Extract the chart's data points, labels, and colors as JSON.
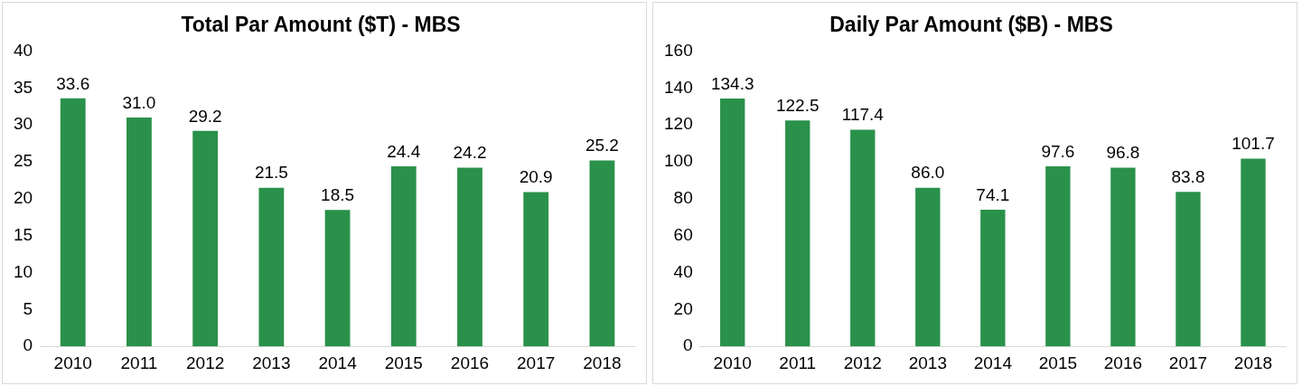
{
  "chart_data": [
    {
      "type": "bar",
      "title": "Total Par Amount ($T) - MBS",
      "categories": [
        "2010",
        "2011",
        "2012",
        "2013",
        "2014",
        "2015",
        "2016",
        "2017",
        "2018"
      ],
      "values": [
        33.6,
        31.0,
        29.2,
        21.5,
        18.5,
        24.4,
        24.2,
        20.9,
        25.2
      ],
      "value_labels": [
        "33.6",
        "31.0",
        "29.2",
        "21.5",
        "18.5",
        "24.4",
        "24.2",
        "20.9",
        "25.2"
      ],
      "color": "#2a914a",
      "ylim": [
        0,
        40
      ],
      "yticks": [
        0,
        5,
        10,
        15,
        20,
        25,
        30,
        35,
        40
      ],
      "grid": false,
      "legend": false
    },
    {
      "type": "bar",
      "title": "Daily Par Amount ($B) - MBS",
      "categories": [
        "2010",
        "2011",
        "2012",
        "2013",
        "2014",
        "2015",
        "2016",
        "2017",
        "2018"
      ],
      "values": [
        134.3,
        122.5,
        117.4,
        86.0,
        74.1,
        97.6,
        96.8,
        83.8,
        101.7
      ],
      "value_labels": [
        "134.3",
        "122.5",
        "117.4",
        "86.0",
        "74.1",
        "97.6",
        "96.8",
        "83.8",
        "101.7"
      ],
      "color": "#2a914a",
      "ylim": [
        0,
        160
      ],
      "yticks": [
        0,
        20,
        40,
        60,
        80,
        100,
        120,
        140,
        160
      ],
      "grid": false,
      "legend": false
    }
  ]
}
